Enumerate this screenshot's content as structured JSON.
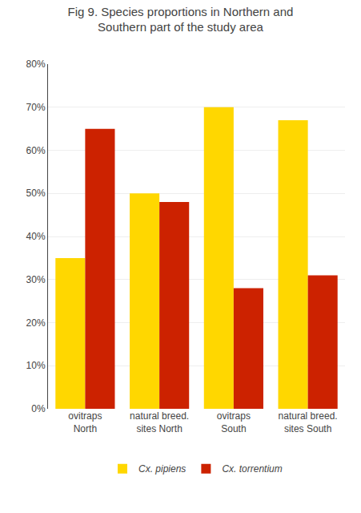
{
  "chart_data": {
    "type": "bar",
    "title": "Fig 9. Species proportions in Northern and\nSouthern part of the study area",
    "categories": [
      "ovitraps\nNorth",
      "natural breed.\nsites North",
      "ovitraps\nSouth",
      "natural breed.\nsites South"
    ],
    "series": [
      {
        "name": "Cx. pipiens",
        "color": "#FFD700",
        "values": [
          35,
          50,
          70,
          67
        ]
      },
      {
        "name": "Cx. torrentium",
        "color": "#CC2200",
        "values": [
          65,
          48,
          28,
          31
        ]
      }
    ],
    "ylim": [
      0,
      80
    ],
    "yticks": [
      {
        "value": 0,
        "label": "0%"
      },
      {
        "value": 10,
        "label": "10%"
      },
      {
        "value": 20,
        "label": "20%"
      },
      {
        "value": 30,
        "label": "30%"
      },
      {
        "value": 40,
        "label": "40%"
      },
      {
        "value": 50,
        "label": "50%"
      },
      {
        "value": 60,
        "label": "60%"
      },
      {
        "value": 70,
        "label": "70%"
      },
      {
        "value": 80,
        "label": "80%"
      }
    ],
    "grid": true,
    "legend": "bottom"
  }
}
